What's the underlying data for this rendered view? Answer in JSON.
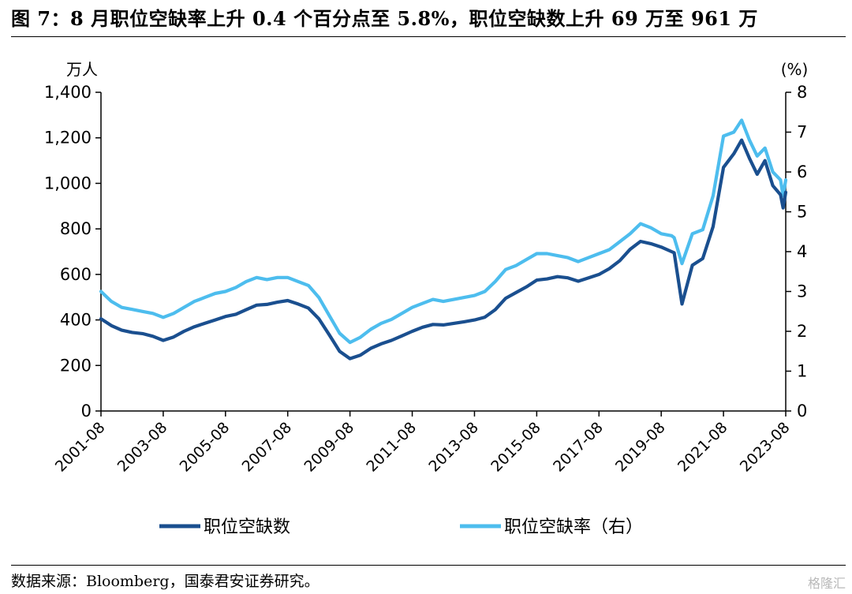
{
  "title": "图 7：8 月职位空缺率上升 0.4 个百分点至 5.8%，职位空缺数上升 69 万至 961 万",
  "source": "数据来源：Bloomberg，国泰君安证券研究。",
  "watermark": "格隆汇",
  "chart_data": {
    "type": "line",
    "y_left": {
      "unit": "万人",
      "min": 0,
      "max": 1400,
      "ticks": [
        "0",
        "200",
        "400",
        "600",
        "800",
        "1,000",
        "1,200",
        "1,400"
      ]
    },
    "y_right": {
      "unit": "(%)",
      "min": 0,
      "max": 8,
      "ticks": [
        "0",
        "1",
        "2",
        "3",
        "4",
        "5",
        "6",
        "7",
        "8"
      ]
    },
    "x_tick_labels": [
      "2001-08",
      "2003-08",
      "2005-08",
      "2007-08",
      "2009-08",
      "2011-08",
      "2013-08",
      "2015-08",
      "2017-08",
      "2019-08",
      "2021-08",
      "2023-08"
    ],
    "grid": false,
    "legend_position": "bottom",
    "series": [
      {
        "name": "职位空缺数",
        "axis": "left",
        "color": "#1a4f8f",
        "points": [
          [
            "2001-08",
            405
          ],
          [
            "2001-12",
            375
          ],
          [
            "2002-04",
            355
          ],
          [
            "2002-08",
            345
          ],
          [
            "2002-12",
            340
          ],
          [
            "2003-04",
            328
          ],
          [
            "2003-08",
            310
          ],
          [
            "2003-12",
            325
          ],
          [
            "2004-04",
            350
          ],
          [
            "2004-08",
            370
          ],
          [
            "2004-12",
            385
          ],
          [
            "2005-04",
            400
          ],
          [
            "2005-08",
            415
          ],
          [
            "2005-12",
            425
          ],
          [
            "2006-04",
            445
          ],
          [
            "2006-08",
            465
          ],
          [
            "2006-12",
            468
          ],
          [
            "2007-04",
            478
          ],
          [
            "2007-08",
            485
          ],
          [
            "2007-12",
            470
          ],
          [
            "2008-04",
            452
          ],
          [
            "2008-08",
            405
          ],
          [
            "2008-12",
            335
          ],
          [
            "2009-04",
            262
          ],
          [
            "2009-08",
            230
          ],
          [
            "2009-12",
            245
          ],
          [
            "2010-04",
            275
          ],
          [
            "2010-08",
            295
          ],
          [
            "2010-12",
            310
          ],
          [
            "2011-04",
            330
          ],
          [
            "2011-08",
            350
          ],
          [
            "2011-12",
            368
          ],
          [
            "2012-04",
            380
          ],
          [
            "2012-08",
            378
          ],
          [
            "2012-12",
            385
          ],
          [
            "2013-04",
            392
          ],
          [
            "2013-08",
            400
          ],
          [
            "2013-12",
            412
          ],
          [
            "2014-04",
            445
          ],
          [
            "2014-08",
            495
          ],
          [
            "2014-12",
            520
          ],
          [
            "2015-04",
            545
          ],
          [
            "2015-08",
            575
          ],
          [
            "2015-12",
            580
          ],
          [
            "2016-04",
            590
          ],
          [
            "2016-08",
            585
          ],
          [
            "2016-12",
            570
          ],
          [
            "2017-04",
            585
          ],
          [
            "2017-08",
            600
          ],
          [
            "2017-12",
            625
          ],
          [
            "2018-04",
            660
          ],
          [
            "2018-08",
            710
          ],
          [
            "2018-12",
            745
          ],
          [
            "2019-04",
            735
          ],
          [
            "2019-08",
            720
          ],
          [
            "2019-12",
            700
          ],
          [
            "2020-01",
            695
          ],
          [
            "2020-04",
            470
          ],
          [
            "2020-08",
            640
          ],
          [
            "2020-12",
            670
          ],
          [
            "2021-04",
            810
          ],
          [
            "2021-08",
            1070
          ],
          [
            "2021-12",
            1130
          ],
          [
            "2022-03",
            1190
          ],
          [
            "2022-06",
            1110
          ],
          [
            "2022-09",
            1040
          ],
          [
            "2022-12",
            1100
          ],
          [
            "2023-03",
            990
          ],
          [
            "2023-06",
            950
          ],
          [
            "2023-07",
            892
          ],
          [
            "2023-08",
            961
          ]
        ]
      },
      {
        "name": "职位空缺率（右）",
        "axis": "right",
        "color": "#4dbdee",
        "points": [
          [
            "2001-08",
            3.0
          ],
          [
            "2001-12",
            2.75
          ],
          [
            "2002-04",
            2.6
          ],
          [
            "2002-08",
            2.55
          ],
          [
            "2002-12",
            2.5
          ],
          [
            "2003-04",
            2.45
          ],
          [
            "2003-08",
            2.35
          ],
          [
            "2003-12",
            2.45
          ],
          [
            "2004-04",
            2.6
          ],
          [
            "2004-08",
            2.75
          ],
          [
            "2004-12",
            2.85
          ],
          [
            "2005-04",
            2.95
          ],
          [
            "2005-08",
            3.0
          ],
          [
            "2005-12",
            3.1
          ],
          [
            "2006-04",
            3.25
          ],
          [
            "2006-08",
            3.35
          ],
          [
            "2006-12",
            3.3
          ],
          [
            "2007-04",
            3.35
          ],
          [
            "2007-08",
            3.35
          ],
          [
            "2007-12",
            3.25
          ],
          [
            "2008-04",
            3.15
          ],
          [
            "2008-08",
            2.85
          ],
          [
            "2008-12",
            2.4
          ],
          [
            "2009-04",
            1.95
          ],
          [
            "2009-08",
            1.72
          ],
          [
            "2009-12",
            1.85
          ],
          [
            "2010-04",
            2.05
          ],
          [
            "2010-08",
            2.2
          ],
          [
            "2010-12",
            2.3
          ],
          [
            "2011-04",
            2.45
          ],
          [
            "2011-08",
            2.6
          ],
          [
            "2011-12",
            2.7
          ],
          [
            "2012-04",
            2.8
          ],
          [
            "2012-08",
            2.75
          ],
          [
            "2012-12",
            2.8
          ],
          [
            "2013-04",
            2.85
          ],
          [
            "2013-08",
            2.9
          ],
          [
            "2013-12",
            3.0
          ],
          [
            "2014-04",
            3.25
          ],
          [
            "2014-08",
            3.55
          ],
          [
            "2014-12",
            3.65
          ],
          [
            "2015-04",
            3.8
          ],
          [
            "2015-08",
            3.95
          ],
          [
            "2015-12",
            3.95
          ],
          [
            "2016-04",
            3.9
          ],
          [
            "2016-08",
            3.85
          ],
          [
            "2016-12",
            3.75
          ],
          [
            "2017-04",
            3.85
          ],
          [
            "2017-08",
            3.95
          ],
          [
            "2017-12",
            4.05
          ],
          [
            "2018-04",
            4.25
          ],
          [
            "2018-08",
            4.45
          ],
          [
            "2018-12",
            4.7
          ],
          [
            "2019-04",
            4.6
          ],
          [
            "2019-08",
            4.45
          ],
          [
            "2019-12",
            4.4
          ],
          [
            "2020-01",
            4.35
          ],
          [
            "2020-04",
            3.7
          ],
          [
            "2020-08",
            4.45
          ],
          [
            "2020-12",
            4.55
          ],
          [
            "2021-04",
            5.4
          ],
          [
            "2021-08",
            6.9
          ],
          [
            "2021-12",
            7.0
          ],
          [
            "2022-03",
            7.3
          ],
          [
            "2022-06",
            6.8
          ],
          [
            "2022-09",
            6.4
          ],
          [
            "2022-12",
            6.6
          ],
          [
            "2023-03",
            6.0
          ],
          [
            "2023-06",
            5.8
          ],
          [
            "2023-07",
            5.4
          ],
          [
            "2023-08",
            5.8
          ]
        ]
      }
    ]
  }
}
